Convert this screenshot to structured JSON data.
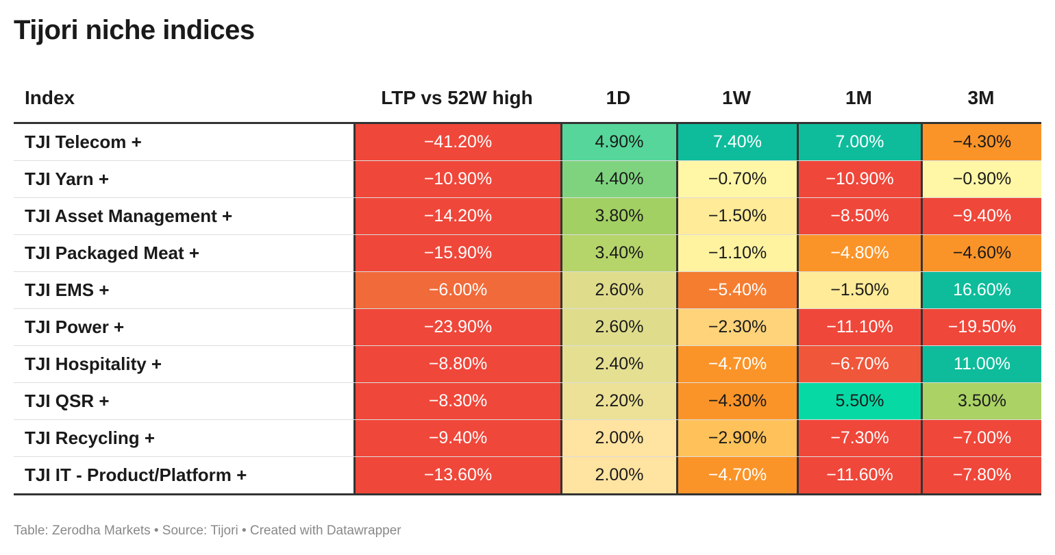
{
  "title": "Tijori niche indices",
  "footer": "Table: Zerodha Markets • Source: Tijori • Created with Datawrapper",
  "chart_data": {
    "type": "table",
    "columns": [
      "Index",
      "LTP vs 52W high",
      "1D",
      "1W",
      "1M",
      "3M"
    ],
    "rows": [
      {
        "name": "TJI Telecom +",
        "values": [
          "−41.20%",
          "4.90%",
          "7.40%",
          "7.00%",
          "−4.30%"
        ],
        "colors": [
          "#ef473a",
          "#56d69a",
          "#0ebc9b",
          "#0ebc9b",
          "#fb9428"
        ],
        "text_light": [
          true,
          false,
          true,
          true,
          false
        ]
      },
      {
        "name": "TJI Yarn +",
        "values": [
          "−10.90%",
          "4.40%",
          "−0.70%",
          "−10.90%",
          "−0.90%"
        ],
        "colors": [
          "#ef473a",
          "#7fd37f",
          "#fff6a6",
          "#ef473a",
          "#fff6a6"
        ],
        "text_light": [
          true,
          false,
          false,
          true,
          false
        ]
      },
      {
        "name": "TJI Asset Management +",
        "values": [
          "−14.20%",
          "3.80%",
          "−1.50%",
          "−8.50%",
          "−9.40%"
        ],
        "colors": [
          "#ef473a",
          "#a2d063",
          "#ffeb98",
          "#ef473a",
          "#ef473a"
        ],
        "text_light": [
          true,
          false,
          false,
          true,
          true
        ]
      },
      {
        "name": "TJI Packaged Meat +",
        "values": [
          "−15.90%",
          "3.40%",
          "−1.10%",
          "−4.80%",
          "−4.60%"
        ],
        "colors": [
          "#ef473a",
          "#b5d46a",
          "#fff3a0",
          "#fb9428",
          "#fb9428"
        ],
        "text_light": [
          true,
          false,
          false,
          true,
          false
        ]
      },
      {
        "name": "TJI EMS +",
        "values": [
          "−6.00%",
          "2.60%",
          "−5.40%",
          "−1.50%",
          "16.60%"
        ],
        "colors": [
          "#f16a3a",
          "#dfdd8c",
          "#f57d30",
          "#ffeb98",
          "#0ebc9b"
        ],
        "text_light": [
          true,
          false,
          true,
          false,
          true
        ]
      },
      {
        "name": "TJI Power +",
        "values": [
          "−23.90%",
          "2.60%",
          "−2.30%",
          "−11.10%",
          "−19.50%"
        ],
        "colors": [
          "#ef473a",
          "#dfdd8c",
          "#ffd37a",
          "#ef473a",
          "#ef473a"
        ],
        "text_light": [
          true,
          false,
          false,
          true,
          true
        ]
      },
      {
        "name": "TJI Hospitality +",
        "values": [
          "−8.80%",
          "2.40%",
          "−4.70%",
          "−6.70%",
          "11.00%"
        ],
        "colors": [
          "#ef473a",
          "#e5df92",
          "#fb9428",
          "#f0563a",
          "#0ebc9b"
        ],
        "text_light": [
          true,
          false,
          true,
          true,
          true
        ]
      },
      {
        "name": "TJI QSR +",
        "values": [
          "−8.30%",
          "2.20%",
          "−4.30%",
          "5.50%",
          "3.50%"
        ],
        "colors": [
          "#ef473a",
          "#ece196",
          "#fb9428",
          "#07d9a5",
          "#aad264"
        ],
        "text_light": [
          true,
          false,
          false,
          false,
          false
        ]
      },
      {
        "name": "TJI Recycling +",
        "values": [
          "−9.40%",
          "2.00%",
          "−2.90%",
          "−7.30%",
          "−7.00%"
        ],
        "colors": [
          "#ef473a",
          "#ffe3a0",
          "#ffc25a",
          "#ef473a",
          "#ef473a"
        ],
        "text_light": [
          true,
          false,
          false,
          true,
          true
        ]
      },
      {
        "name": "TJI IT - Product/Platform +",
        "values": [
          "−13.60%",
          "2.00%",
          "−4.70%",
          "−11.60%",
          "−7.80%"
        ],
        "colors": [
          "#ef473a",
          "#ffe3a0",
          "#fb9428",
          "#ef473a",
          "#ef473a"
        ],
        "text_light": [
          true,
          false,
          true,
          true,
          true
        ]
      }
    ]
  }
}
